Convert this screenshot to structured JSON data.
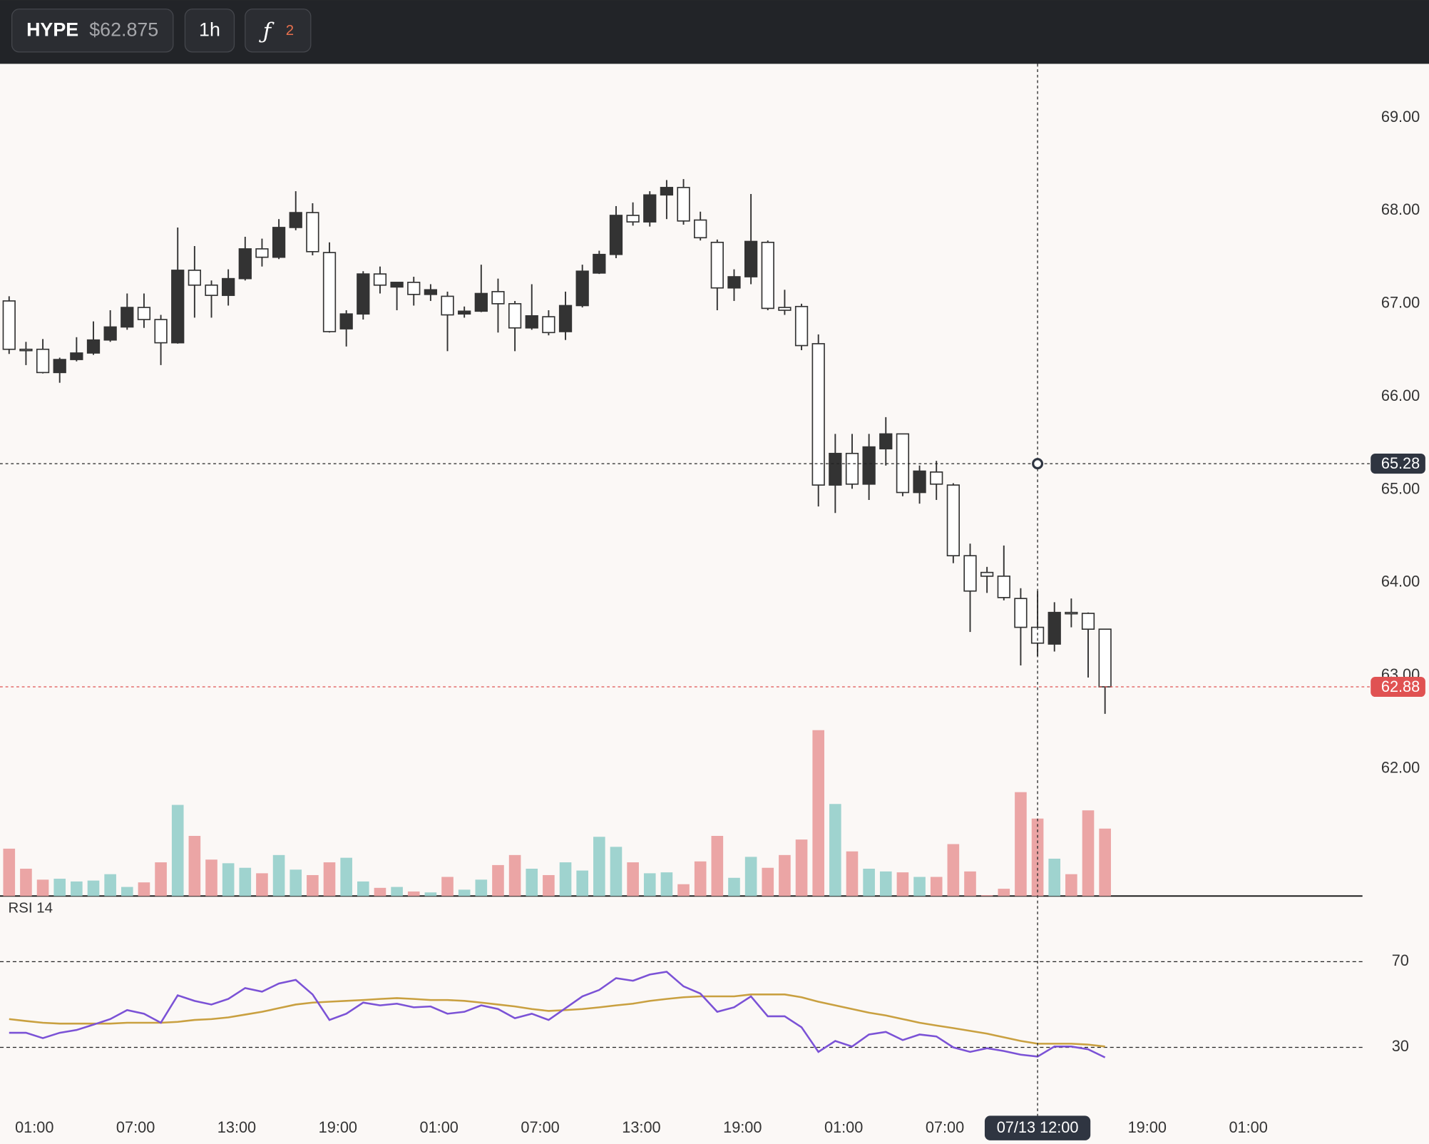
{
  "toolbar": {
    "symbol": "HYPE",
    "price": "$62.875",
    "interval": "1h",
    "indicator_icon": "ƒ",
    "indicator_count": "2"
  },
  "chart_data": {
    "type": "candlestick",
    "categories": [
      null,
      null,
      "01:00",
      null,
      null,
      null,
      null,
      null,
      "07:00",
      null,
      null,
      null,
      null,
      null,
      "13:00",
      null,
      null,
      null,
      null,
      null,
      "19:00",
      null,
      null,
      null,
      null,
      null,
      "01:00",
      null,
      null,
      null,
      null,
      null,
      "07:00",
      null,
      null,
      null,
      null,
      null,
      "13:00",
      null,
      null,
      null,
      null,
      null,
      "19:00",
      null,
      null,
      null,
      null,
      null,
      "01:00",
      null,
      null,
      null,
      null,
      null,
      "07:00",
      null,
      null,
      null,
      null,
      "07/13 12:00",
      null,
      null,
      null,
      null,
      null,
      null,
      "19:00",
      null,
      null,
      null,
      null,
      null,
      "01:00",
      null,
      null,
      null,
      null,
      null,
      null
    ],
    "open": [
      67.03,
      66.51,
      66.51,
      66.26,
      66.4,
      66.47,
      66.61,
      66.75,
      66.96,
      66.83,
      66.58,
      67.36,
      67.2,
      67.09,
      67.27,
      67.59,
      67.5,
      67.82,
      67.98,
      67.55,
      66.73,
      66.89,
      67.32,
      67.18,
      67.23,
      67.1,
      67.08,
      66.89,
      66.92,
      67.13,
      67.0,
      66.74,
      66.86,
      66.7,
      66.98,
      67.33,
      67.53,
      67.95,
      67.88,
      68.17,
      68.25,
      67.9,
      67.66,
      67.17,
      67.29,
      67.66,
      66.96,
      66.97,
      66.57,
      65.05,
      65.39,
      65.06,
      65.44,
      65.6,
      64.97,
      65.19,
      65.05,
      64.29,
      64.11,
      64.07,
      63.83,
      63.52,
      63.34,
      63.68,
      63.67,
      63.5,
      null,
      null,
      null,
      null,
      null,
      null,
      null,
      null,
      null,
      null,
      null,
      null,
      null,
      null,
      null
    ],
    "high": [
      67.08,
      66.59,
      66.62,
      66.42,
      66.64,
      66.81,
      66.93,
      67.11,
      67.11,
      66.88,
      67.82,
      67.62,
      67.25,
      67.37,
      67.72,
      67.7,
      67.91,
      68.21,
      68.08,
      67.66,
      66.93,
      67.35,
      67.4,
      67.23,
      67.29,
      67.21,
      67.13,
      66.97,
      67.42,
      67.27,
      67.03,
      67.21,
      66.93,
      67.13,
      67.42,
      67.57,
      68.05,
      68.09,
      68.21,
      68.33,
      68.34,
      67.99,
      67.69,
      67.37,
      68.18,
      67.68,
      67.15,
      67.0,
      66.67,
      65.6,
      65.6,
      65.6,
      65.78,
      65.6,
      65.26,
      65.31,
      65.07,
      64.42,
      64.17,
      64.4,
      63.94,
      63.91,
      63.79,
      63.83,
      63.68,
      63.5,
      null,
      null,
      null,
      null,
      null,
      null,
      null,
      null,
      null,
      null,
      null,
      null,
      null,
      null,
      null
    ],
    "low": [
      66.46,
      66.34,
      66.25,
      66.15,
      66.38,
      66.45,
      66.59,
      66.72,
      66.74,
      66.34,
      66.57,
      66.85,
      66.85,
      66.98,
      67.25,
      67.4,
      67.48,
      67.79,
      67.52,
      66.69,
      66.54,
      66.83,
      67.11,
      66.93,
      66.98,
      67.03,
      66.49,
      66.85,
      66.91,
      66.69,
      66.49,
      66.72,
      66.66,
      66.61,
      66.96,
      67.32,
      67.49,
      67.84,
      67.83,
      67.91,
      67.85,
      67.68,
      66.93,
      67.03,
      67.21,
      66.93,
      66.88,
      66.5,
      64.82,
      64.75,
      65.01,
      64.89,
      65.26,
      64.93,
      64.85,
      64.89,
      64.21,
      63.47,
      63.89,
      63.81,
      63.11,
      63.21,
      63.26,
      63.52,
      62.98,
      62.59,
      null,
      null,
      null,
      null,
      null,
      null,
      null,
      null,
      null,
      null,
      null,
      null,
      null,
      null,
      null
    ],
    "close": [
      66.51,
      66.5,
      66.26,
      66.4,
      66.47,
      66.61,
      66.75,
      66.96,
      66.83,
      66.58,
      67.36,
      67.2,
      67.09,
      67.27,
      67.59,
      67.5,
      67.82,
      67.98,
      67.56,
      66.7,
      66.89,
      67.32,
      67.2,
      67.23,
      67.1,
      67.15,
      66.88,
      66.92,
      67.11,
      67.0,
      66.74,
      66.87,
      66.69,
      66.98,
      67.35,
      67.53,
      67.95,
      67.88,
      68.17,
      68.25,
      67.89,
      67.71,
      67.17,
      67.29,
      67.67,
      66.95,
      66.93,
      66.55,
      65.05,
      65.39,
      65.06,
      65.46,
      65.6,
      64.97,
      65.2,
      65.06,
      64.29,
      63.91,
      64.07,
      63.84,
      63.52,
      63.35,
      63.68,
      63.67,
      63.5,
      62.88,
      null,
      null,
      null,
      null,
      null,
      null,
      null,
      null,
      null,
      null,
      null,
      null,
      null,
      null,
      null
    ],
    "volume": [
      52,
      30,
      18,
      19,
      16,
      17,
      24,
      10,
      15,
      37,
      100,
      66,
      40,
      36,
      31,
      25,
      45,
      29,
      23,
      37,
      42,
      16,
      9,
      10,
      5,
      4,
      21,
      7,
      18,
      34,
      45,
      30,
      23,
      37,
      28,
      65,
      54,
      37,
      25,
      26,
      13,
      38,
      66,
      20,
      43,
      31,
      45,
      62,
      182,
      101,
      49,
      30,
      27,
      26,
      21,
      21,
      57,
      27,
      1,
      8,
      114,
      85,
      41,
      24,
      94,
      74,
      null,
      null,
      null,
      null,
      null,
      null,
      null,
      null,
      null,
      null,
      null,
      null,
      null,
      null,
      null
    ],
    "ylim": [
      60.63,
      69.58
    ],
    "yticks": [
      {
        "value": 62,
        "label": "62.00"
      },
      {
        "value": 63,
        "label": "63.00"
      },
      {
        "value": 64,
        "label": "64.00"
      },
      {
        "value": 65,
        "label": "65.00"
      },
      {
        "value": 66,
        "label": "66.00"
      },
      {
        "value": 67,
        "label": "67.00"
      },
      {
        "value": 68,
        "label": "68.00"
      },
      {
        "value": 69,
        "label": "69.00"
      }
    ],
    "up_color": "#333333",
    "down_color": "#ffffff",
    "volume_up_color": "#9fd3cf",
    "volume_down_color": "#eba5a5",
    "last_price": 62.88,
    "last_price_color": "#e05252",
    "crosshair": {
      "x": "07/13 12:00",
      "y": 65.28
    },
    "rsi": {
      "name": "RSI 14",
      "ylim": [
        0,
        100
      ],
      "yticks": [
        30,
        70
      ],
      "color": "#7b52d6",
      "ma_color": "#c9a040",
      "values": [
        36.8,
        36.8,
        34.3,
        36.8,
        38.1,
        40.6,
        43.2,
        47.4,
        45.7,
        41.5,
        54.3,
        51.7,
        50.0,
        52.6,
        57.7,
        56.0,
        59.8,
        61.5,
        54.7,
        42.8,
        45.7,
        50.9,
        49.6,
        50.4,
        48.7,
        49.1,
        45.7,
        46.6,
        49.6,
        47.9,
        43.6,
        45.7,
        42.8,
        48.3,
        53.8,
        56.8,
        62.3,
        61.1,
        64.0,
        65.3,
        58.5,
        55.1,
        46.6,
        48.7,
        53.8,
        44.5,
        44.5,
        39.4,
        27.9,
        33.0,
        30.4,
        36.0,
        37.2,
        33.4,
        36.0,
        35.1,
        30.0,
        27.9,
        29.6,
        28.3,
        26.6,
        25.7,
        30.4,
        30.4,
        29.1,
        25.3,
        null,
        null,
        null,
        null,
        null,
        null,
        null,
        null,
        null,
        null,
        null,
        null,
        null,
        null,
        null
      ],
      "ma_values": [
        43.2,
        42.3,
        41.5,
        41.1,
        41.1,
        41.1,
        41.1,
        41.5,
        41.5,
        41.5,
        41.9,
        42.8,
        43.2,
        44.0,
        45.3,
        46.6,
        48.3,
        50.0,
        50.9,
        51.3,
        51.7,
        52.1,
        52.6,
        53.0,
        52.6,
        52.1,
        52.1,
        51.7,
        50.9,
        50.0,
        49.1,
        47.9,
        47.0,
        47.4,
        47.9,
        48.7,
        49.6,
        50.4,
        51.7,
        52.6,
        53.4,
        53.8,
        53.8,
        53.8,
        54.7,
        54.7,
        54.7,
        53.4,
        51.3,
        49.6,
        47.9,
        46.2,
        44.9,
        43.2,
        41.5,
        40.2,
        39.0,
        37.7,
        36.4,
        34.7,
        33.0,
        31.7,
        31.7,
        31.7,
        31.3,
        30.4,
        null,
        null,
        null,
        null,
        null,
        null,
        null,
        null,
        null,
        null,
        null,
        null,
        null,
        null,
        null
      ]
    }
  }
}
